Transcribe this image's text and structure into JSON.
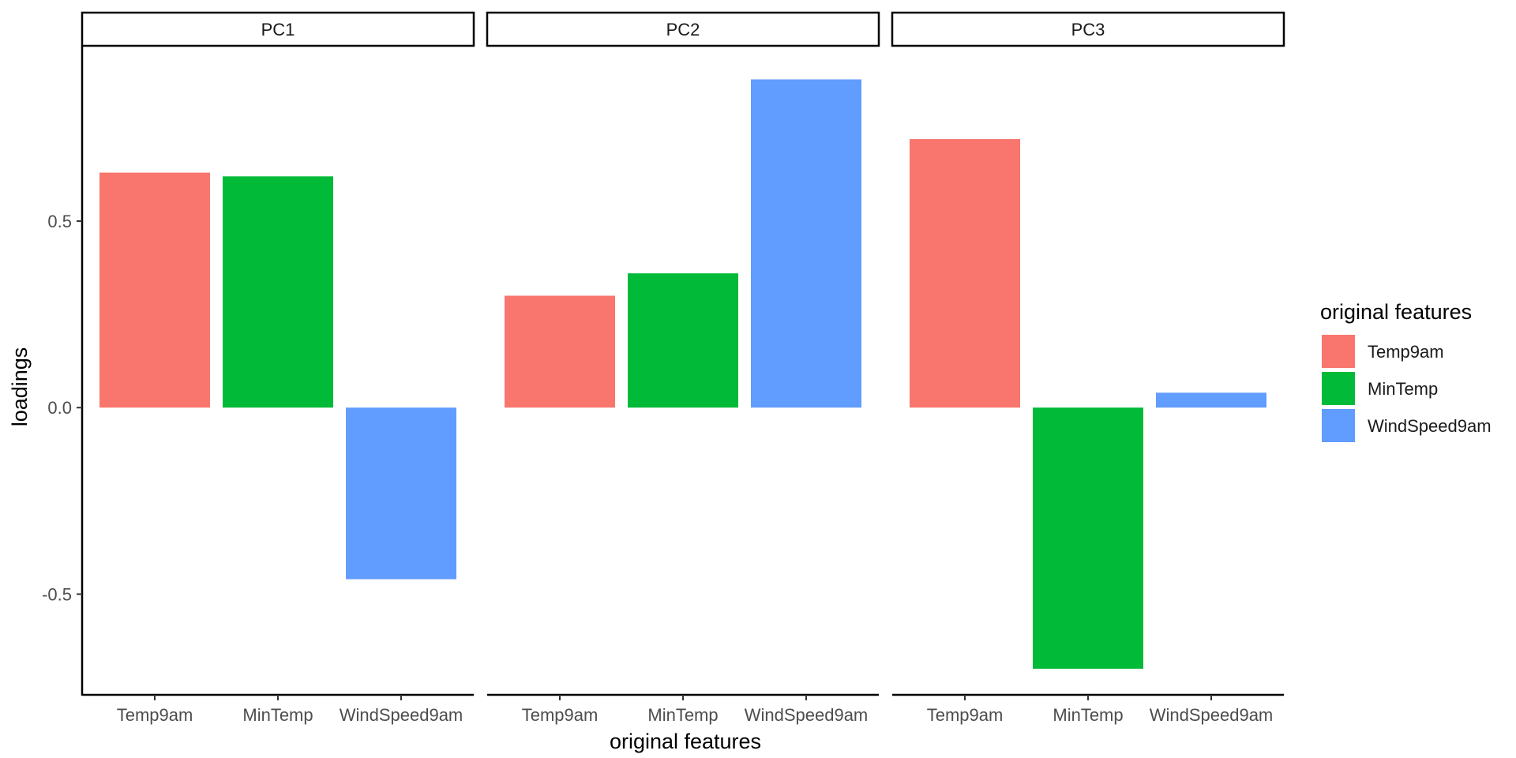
{
  "chart_data": {
    "type": "bar",
    "facets": [
      "PC1",
      "PC2",
      "PC3"
    ],
    "categories": [
      "Temp9am",
      "MinTemp",
      "WindSpeed9am"
    ],
    "series": [
      {
        "name": "Temp9am",
        "color": "#F8766D",
        "values": [
          0.63,
          0.3,
          0.72
        ]
      },
      {
        "name": "MinTemp",
        "color": "#00BA38",
        "values": [
          0.62,
          0.36,
          -0.7
        ]
      },
      {
        "name": "WindSpeed9am",
        "color": "#619CFF",
        "values": [
          -0.46,
          0.88,
          0.04
        ]
      }
    ],
    "xlabel": "original features",
    "ylabel": "loadings",
    "yticks": [
      -0.5,
      0.0,
      0.5
    ],
    "ytick_labels": [
      "-0.5",
      "0.0",
      "0.5"
    ],
    "ylim": [
      -0.77,
      0.97
    ],
    "legend": {
      "title": "original features",
      "position": "right"
    },
    "grid": false
  }
}
